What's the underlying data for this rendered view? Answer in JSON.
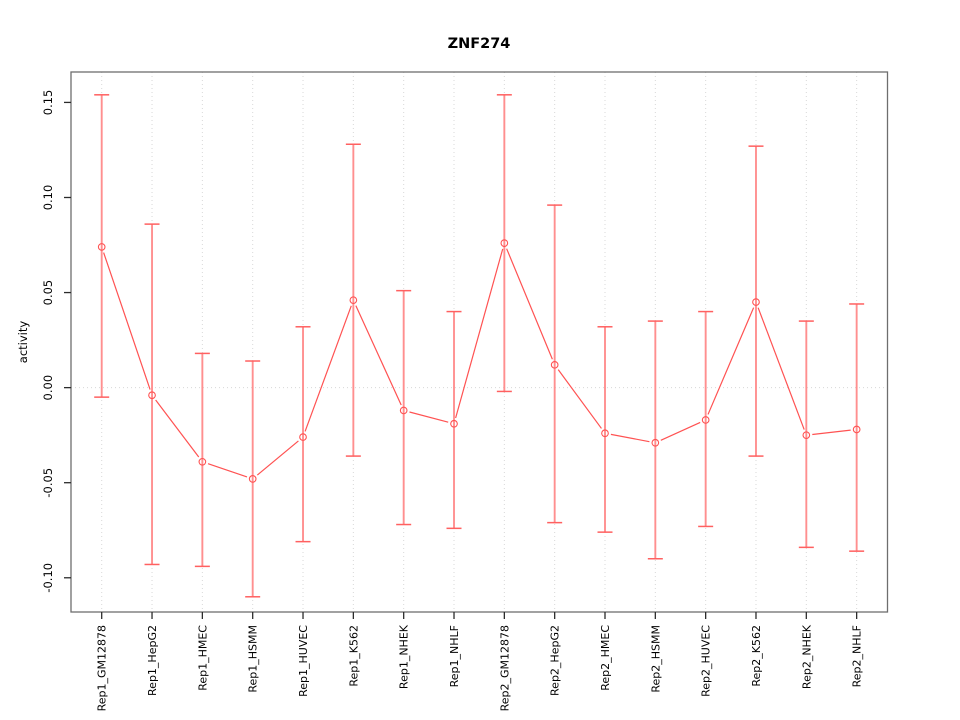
{
  "window": {
    "background": "#ffffff"
  },
  "chart_data": {
    "type": "line",
    "title": "ZNF274",
    "xlabel": "",
    "ylabel": "activity",
    "legend": "none",
    "grid": {
      "vertical_dotted_per_category": true,
      "horizontal_dotted_at_zero": true
    },
    "categories": [
      "Rep1_GM12878",
      "Rep1_HepG2",
      "Rep1_HMEC",
      "Rep1_HSMM",
      "Rep1_HUVEC",
      "Rep1_K562",
      "Rep1_NHEK",
      "Rep1_NHLF",
      "Rep2_GM12878",
      "Rep2_HepG2",
      "Rep2_HMEC",
      "Rep2_HSMM",
      "Rep2_HUVEC",
      "Rep2_K562",
      "Rep2_NHEK",
      "Rep2_NHLF"
    ],
    "series": [
      {
        "name": "activity",
        "values": [
          0.074,
          -0.004,
          -0.039,
          -0.048,
          -0.026,
          0.046,
          -0.012,
          -0.019,
          0.076,
          0.012,
          -0.024,
          -0.029,
          -0.017,
          0.045,
          -0.025,
          -0.022
        ],
        "error_lower": [
          -0.005,
          -0.093,
          -0.094,
          -0.11,
          -0.081,
          -0.036,
          -0.072,
          -0.074,
          -0.002,
          -0.071,
          -0.076,
          -0.09,
          -0.073,
          -0.036,
          -0.084,
          -0.086
        ],
        "error_upper": [
          0.154,
          0.086,
          0.018,
          0.014,
          0.032,
          0.128,
          0.051,
          0.04,
          0.154,
          0.096,
          0.032,
          0.035,
          0.04,
          0.127,
          0.035,
          0.044
        ]
      }
    ],
    "ylim": [
      -0.118,
      0.166
    ],
    "yticks": [
      -0.1,
      -0.05,
      0.0,
      0.05,
      0.1,
      0.15
    ],
    "ytick_labels": [
      "-0.10",
      "-0.05",
      "0.00",
      "0.05",
      "0.10",
      "0.15"
    ],
    "marker": "open-circle"
  },
  "colors": {
    "point_line_red": "#ff5252",
    "error_bar_light": "#ff8f8f",
    "error_cap_red": "#ff6060",
    "gridline_gray": "#d8d8d8",
    "box_gray": "#6e6e6e",
    "tick_black": "#2b2b2b"
  }
}
